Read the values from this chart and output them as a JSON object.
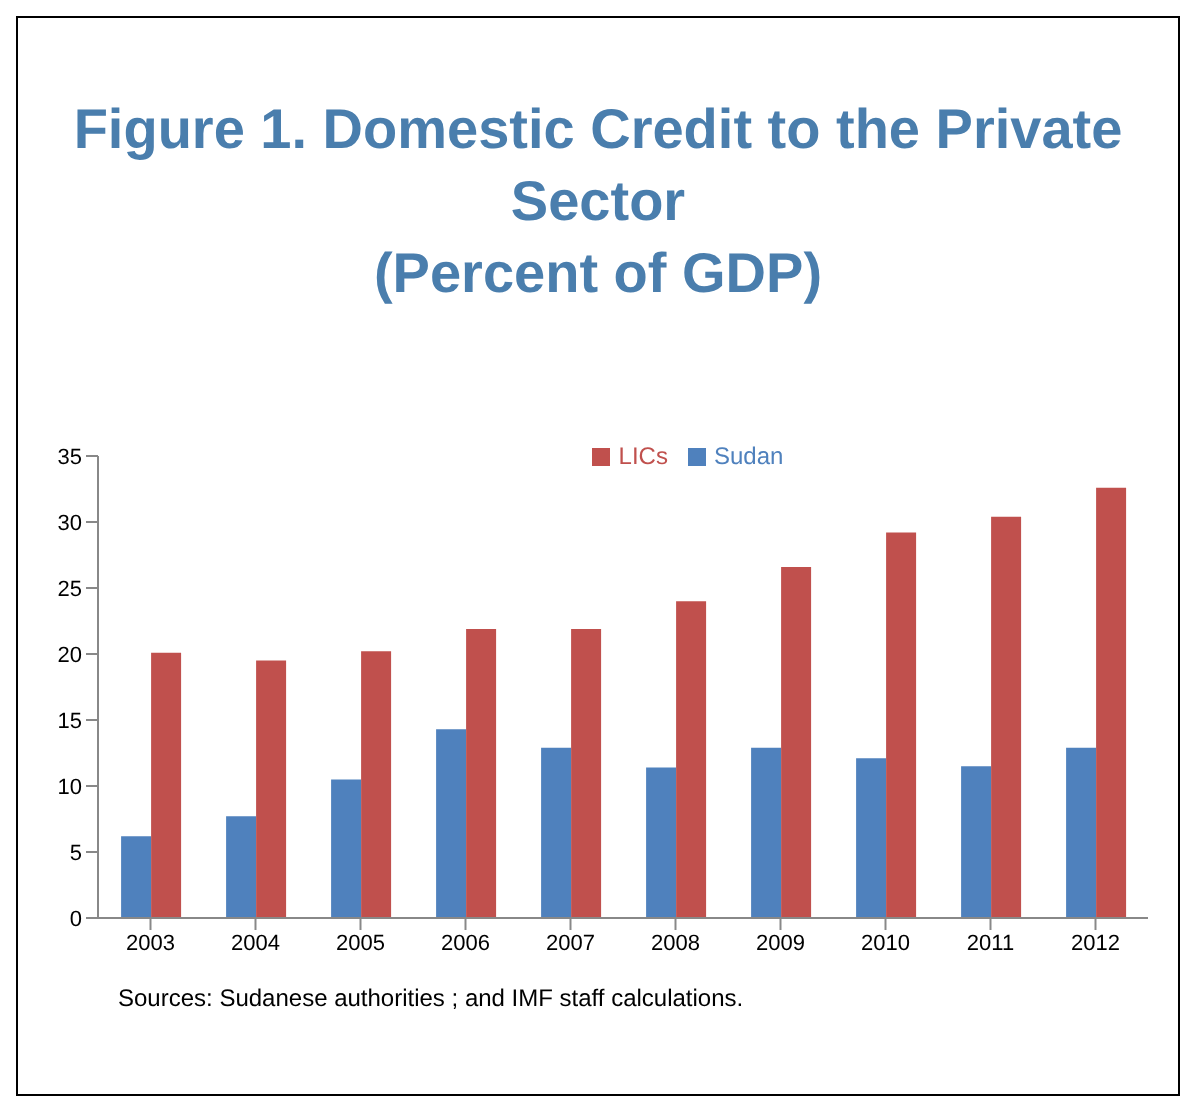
{
  "chart_data": {
    "type": "bar",
    "title": "Figure 1. Domestic Credit to the Private Sector\n(Percent of GDP)",
    "categories": [
      "2003",
      "2004",
      "2005",
      "2006",
      "2007",
      "2008",
      "2009",
      "2010",
      "2011",
      "2012"
    ],
    "series": [
      {
        "name": "Sudan",
        "color": "#4f81bd",
        "values": [
          6.2,
          7.7,
          10.5,
          14.3,
          12.9,
          11.4,
          12.9,
          12.1,
          11.5,
          12.9
        ]
      },
      {
        "name": "LICs",
        "color": "#c0504d",
        "values": [
          20.1,
          19.5,
          20.2,
          21.9,
          21.9,
          24.0,
          26.6,
          29.2,
          30.4,
          32.6
        ]
      }
    ],
    "ylim": [
      0,
      35
    ],
    "yticks": [
      0,
      5,
      10,
      15,
      20,
      25,
      30,
      35
    ],
    "grid": false,
    "legend": "top",
    "annotations": [
      "Sources: Sudanese authorities ; and IMF staff calculations."
    ]
  }
}
